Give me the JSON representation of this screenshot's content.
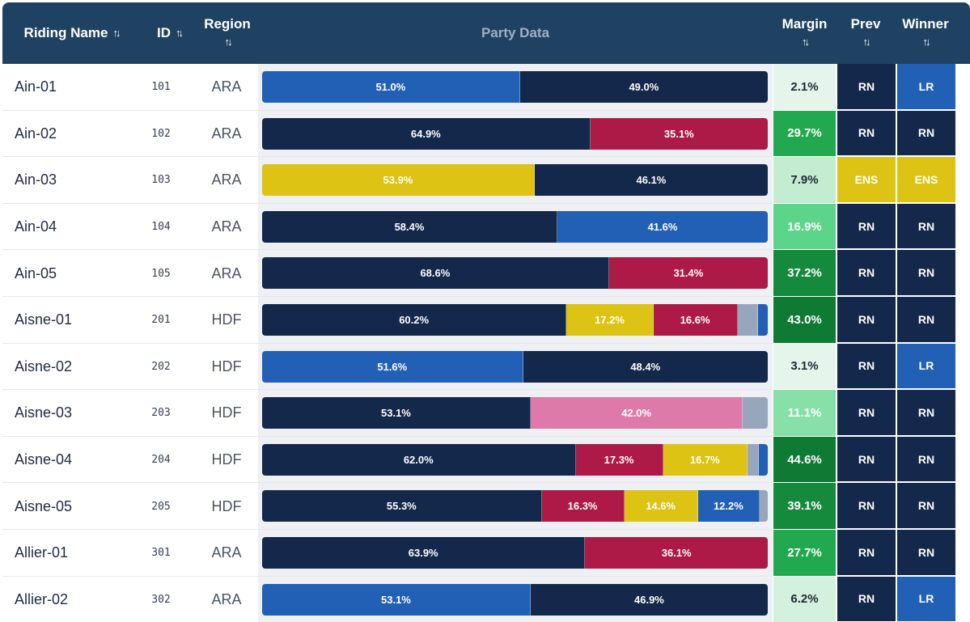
{
  "header": {
    "riding_name": "Riding Name",
    "id": "ID",
    "region": "Region",
    "party_data": "Party Data",
    "margin": "Margin",
    "prev": "Prev",
    "winner": "Winner",
    "sort_icon": "sort-arrows-icon"
  },
  "colors": {
    "header_bg": "#1f4262",
    "RN": "#13284a",
    "LR": "#2160b4",
    "ENS": "#ddc313",
    "NFP": "#ad1a48",
    "PINK": "#dd7aaa",
    "GREY": "#98a6bc"
  },
  "rows": [
    {
      "name": "Ain-01",
      "id": "101",
      "region": "ARA",
      "margin": "2.1%",
      "margin_color": "#e6f5ec",
      "margin_text": "#1f2937",
      "prev": "RN",
      "winner": "LR",
      "segments": [
        {
          "party": "LR",
          "pct": 51.0,
          "label": "51.0%"
        },
        {
          "party": "RN",
          "pct": 49.0,
          "label": "49.0%"
        }
      ]
    },
    {
      "name": "Ain-02",
      "id": "102",
      "region": "ARA",
      "margin": "29.7%",
      "margin_color": "#22a94f",
      "margin_text": "#ffffff",
      "prev": "RN",
      "winner": "RN",
      "segments": [
        {
          "party": "RN",
          "pct": 64.9,
          "label": "64.9%"
        },
        {
          "party": "NFP",
          "pct": 35.1,
          "label": "35.1%"
        }
      ]
    },
    {
      "name": "Ain-03",
      "id": "103",
      "region": "ARA",
      "margin": "7.9%",
      "margin_color": "#c3ecd0",
      "margin_text": "#1f2937",
      "prev": "ENS",
      "winner": "ENS",
      "segments": [
        {
          "party": "ENS",
          "pct": 53.9,
          "label": "53.9%"
        },
        {
          "party": "RN",
          "pct": 46.1,
          "label": "46.1%"
        }
      ]
    },
    {
      "name": "Ain-04",
      "id": "104",
      "region": "ARA",
      "margin": "16.9%",
      "margin_color": "#5cd48a",
      "margin_text": "#ffffff",
      "prev": "RN",
      "winner": "RN",
      "segments": [
        {
          "party": "RN",
          "pct": 58.4,
          "label": "58.4%"
        },
        {
          "party": "LR",
          "pct": 41.6,
          "label": "41.6%"
        }
      ]
    },
    {
      "name": "Ain-05",
      "id": "105",
      "region": "ARA",
      "margin": "37.2%",
      "margin_color": "#158a3d",
      "margin_text": "#ffffff",
      "prev": "RN",
      "winner": "RN",
      "segments": [
        {
          "party": "RN",
          "pct": 68.6,
          "label": "68.6%"
        },
        {
          "party": "NFP",
          "pct": 31.4,
          "label": "31.4%"
        }
      ]
    },
    {
      "name": "Aisne-01",
      "id": "201",
      "region": "HDF",
      "margin": "43.0%",
      "margin_color": "#0f7a34",
      "margin_text": "#ffffff",
      "prev": "RN",
      "winner": "RN",
      "segments": [
        {
          "party": "RN",
          "pct": 60.2,
          "label": "60.2%"
        },
        {
          "party": "ENS",
          "pct": 17.2,
          "label": "17.2%"
        },
        {
          "party": "NFP",
          "pct": 16.6,
          "label": "16.6%"
        },
        {
          "party": "GREY",
          "pct": 4.0,
          "label": ""
        },
        {
          "party": "LR",
          "pct": 2.0,
          "label": ""
        }
      ]
    },
    {
      "name": "Aisne-02",
      "id": "202",
      "region": "HDF",
      "margin": "3.1%",
      "margin_color": "#e6f5ec",
      "margin_text": "#1f2937",
      "prev": "RN",
      "winner": "LR",
      "segments": [
        {
          "party": "LR",
          "pct": 51.6,
          "label": "51.6%"
        },
        {
          "party": "RN",
          "pct": 48.4,
          "label": "48.4%"
        }
      ]
    },
    {
      "name": "Aisne-03",
      "id": "203",
      "region": "HDF",
      "margin": "11.1%",
      "margin_color": "#86e0a8",
      "margin_text": "#ffffff",
      "prev": "RN",
      "winner": "RN",
      "segments": [
        {
          "party": "RN",
          "pct": 53.1,
          "label": "53.1%"
        },
        {
          "party": "PINK",
          "pct": 42.0,
          "label": "42.0%"
        },
        {
          "party": "GREY",
          "pct": 4.9,
          "label": ""
        }
      ]
    },
    {
      "name": "Aisne-04",
      "id": "204",
      "region": "HDF",
      "margin": "44.6%",
      "margin_color": "#0f7a34",
      "margin_text": "#ffffff",
      "prev": "RN",
      "winner": "RN",
      "segments": [
        {
          "party": "RN",
          "pct": 62.0,
          "label": "62.0%"
        },
        {
          "party": "NFP",
          "pct": 17.3,
          "label": "17.3%"
        },
        {
          "party": "ENS",
          "pct": 16.7,
          "label": "16.7%"
        },
        {
          "party": "GREY",
          "pct": 2.2,
          "label": ""
        },
        {
          "party": "LR",
          "pct": 1.8,
          "label": ""
        }
      ]
    },
    {
      "name": "Aisne-05",
      "id": "205",
      "region": "HDF",
      "margin": "39.1%",
      "margin_color": "#158a3d",
      "margin_text": "#ffffff",
      "prev": "RN",
      "winner": "RN",
      "segments": [
        {
          "party": "RN",
          "pct": 55.3,
          "label": "55.3%"
        },
        {
          "party": "NFP",
          "pct": 16.3,
          "label": "16.3%"
        },
        {
          "party": "ENS",
          "pct": 14.6,
          "label": "14.6%"
        },
        {
          "party": "LR",
          "pct": 12.2,
          "label": "12.2%"
        },
        {
          "party": "GREY",
          "pct": 1.6,
          "label": ""
        }
      ]
    },
    {
      "name": "Allier-01",
      "id": "301",
      "region": "ARA",
      "margin": "27.7%",
      "margin_color": "#22a94f",
      "margin_text": "#ffffff",
      "prev": "RN",
      "winner": "RN",
      "segments": [
        {
          "party": "RN",
          "pct": 63.9,
          "label": "63.9%"
        },
        {
          "party": "NFP",
          "pct": 36.1,
          "label": "36.1%"
        }
      ]
    },
    {
      "name": "Allier-02",
      "id": "302",
      "region": "ARA",
      "margin": "6.2%",
      "margin_color": "#d4f1dd",
      "margin_text": "#1f2937",
      "prev": "RN",
      "winner": "LR",
      "segments": [
        {
          "party": "LR",
          "pct": 53.1,
          "label": "53.1%"
        },
        {
          "party": "RN",
          "pct": 46.9,
          "label": "46.9%"
        }
      ]
    }
  ]
}
